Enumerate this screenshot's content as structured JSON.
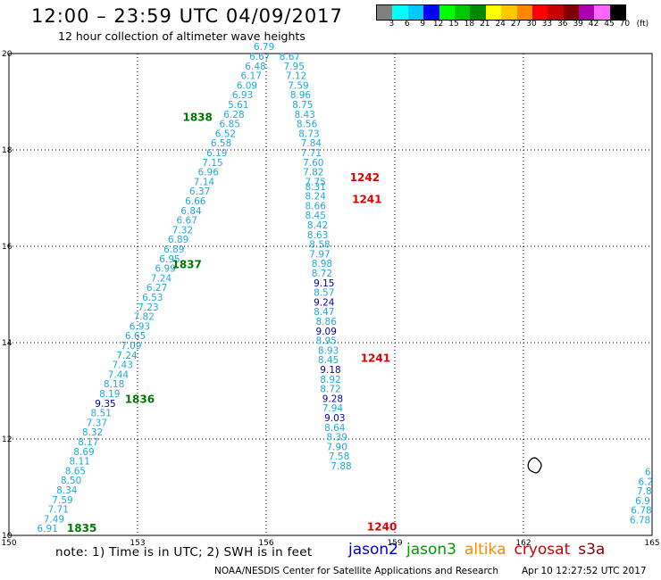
{
  "title": "12:00 – 23:59 UTC 04/09/2017",
  "subtitle": "12 hour collection of altimeter wave heights",
  "legend": {
    "labels": [
      "3",
      "6",
      "9",
      "12",
      "15",
      "18",
      "21",
      "24",
      "27",
      "30",
      "33",
      "36",
      "39",
      "42",
      "45",
      "70"
    ],
    "unit": "(ft)",
    "colors": [
      "#808080",
      "#00ffff",
      "#00c8ff",
      "#0000ff",
      "#00ff00",
      "#00c800",
      "#008800",
      "#ffff00",
      "#ffc800",
      "#ff8800",
      "#ff0000",
      "#c80000",
      "#800000",
      "#aa00aa",
      "#ff66ff",
      "#000000"
    ]
  },
  "map": {
    "x_ticks": [
      "150",
      "153",
      "156",
      "159",
      "162",
      "165"
    ],
    "y_ticks": [
      "10",
      "12",
      "14",
      "16",
      "18",
      "20"
    ],
    "x_range": [
      150,
      165
    ],
    "y_range": [
      10,
      20
    ]
  },
  "tracks": [
    {
      "name": "track_1",
      "values": [
        {
          "lon": 150.9,
          "lat": 10.07,
          "v": "6.91"
        },
        {
          "lon": 151.05,
          "lat": 10.27,
          "v": "7.49"
        },
        {
          "lon": 151.15,
          "lat": 10.47,
          "v": "7.71"
        },
        {
          "lon": 151.25,
          "lat": 10.67,
          "v": "7.59"
        },
        {
          "lon": 151.35,
          "lat": 10.87,
          "v": "8.34"
        },
        {
          "lon": 151.45,
          "lat": 11.07,
          "v": "8.50"
        },
        {
          "lon": 151.55,
          "lat": 11.27,
          "v": "8.65"
        },
        {
          "lon": 151.65,
          "lat": 11.47,
          "v": "8.11"
        },
        {
          "lon": 151.75,
          "lat": 11.67,
          "v": "8.69"
        },
        {
          "lon": 151.85,
          "lat": 11.87,
          "v": "8.17"
        },
        {
          "lon": 151.95,
          "lat": 12.07,
          "v": "8.32"
        },
        {
          "lon": 152.05,
          "lat": 12.27,
          "v": "7.37"
        },
        {
          "lon": 152.15,
          "lat": 12.47,
          "v": "8.51"
        },
        {
          "lon": 152.25,
          "lat": 12.67,
          "v": "9.35",
          "c": "blue"
        },
        {
          "lon": 152.35,
          "lat": 12.87,
          "v": "8.19"
        },
        {
          "lon": 152.45,
          "lat": 13.07,
          "v": "8.18"
        },
        {
          "lon": 152.55,
          "lat": 13.27,
          "v": "7.44"
        },
        {
          "lon": 152.65,
          "lat": 13.47,
          "v": "7.43"
        },
        {
          "lon": 152.75,
          "lat": 13.67,
          "v": "7.24"
        },
        {
          "lon": 152.85,
          "lat": 13.87,
          "v": "7.09"
        },
        {
          "lon": 152.95,
          "lat": 14.07,
          "v": "6.65"
        },
        {
          "lon": 153.05,
          "lat": 14.27,
          "v": "6.93"
        },
        {
          "lon": 153.15,
          "lat": 14.47,
          "v": "7.82"
        },
        {
          "lon": 153.25,
          "lat": 14.67,
          "v": "7.23"
        },
        {
          "lon": 153.35,
          "lat": 14.87,
          "v": "6.53"
        },
        {
          "lon": 153.45,
          "lat": 15.07,
          "v": "6.27"
        },
        {
          "lon": 153.55,
          "lat": 15.27,
          "v": "7.24"
        },
        {
          "lon": 153.65,
          "lat": 15.47,
          "v": "6.99"
        },
        {
          "lon": 153.75,
          "lat": 15.67,
          "v": "6.95"
        },
        {
          "lon": 153.85,
          "lat": 15.87,
          "v": "6.89"
        },
        {
          "lon": 153.95,
          "lat": 16.07,
          "v": "6.89"
        },
        {
          "lon": 154.05,
          "lat": 16.27,
          "v": "7.32"
        },
        {
          "lon": 154.15,
          "lat": 16.47,
          "v": "6.67"
        },
        {
          "lon": 154.25,
          "lat": 16.67,
          "v": "6.84"
        },
        {
          "lon": 154.35,
          "lat": 16.87,
          "v": "6.66"
        },
        {
          "lon": 154.45,
          "lat": 17.07,
          "v": "6.37"
        },
        {
          "lon": 154.55,
          "lat": 17.27,
          "v": "7.14"
        },
        {
          "lon": 154.65,
          "lat": 17.47,
          "v": "6.96"
        },
        {
          "lon": 154.75,
          "lat": 17.67,
          "v": "7.15"
        },
        {
          "lon": 154.85,
          "lat": 17.87,
          "v": "6.19"
        },
        {
          "lon": 154.95,
          "lat": 18.07,
          "v": "6.58"
        },
        {
          "lon": 155.05,
          "lat": 18.27,
          "v": "6.52"
        },
        {
          "lon": 155.15,
          "lat": 18.47,
          "v": "6.85"
        },
        {
          "lon": 155.25,
          "lat": 18.67,
          "v": "6.28"
        },
        {
          "lon": 155.35,
          "lat": 18.87,
          "v": "5.61"
        },
        {
          "lon": 155.45,
          "lat": 19.07,
          "v": "6.93"
        },
        {
          "lon": 155.55,
          "lat": 19.27,
          "v": "6.09"
        },
        {
          "lon": 155.65,
          "lat": 19.47,
          "v": "6.17"
        },
        {
          "lon": 155.75,
          "lat": 19.67,
          "v": "6.48"
        },
        {
          "lon": 155.85,
          "lat": 19.87,
          "v": "6.67"
        },
        {
          "lon": 155.95,
          "lat": 20.07,
          "v": "6.79"
        }
      ]
    },
    {
      "name": "track_2",
      "values": [
        {
          "lon": 156.55,
          "lat": 19.87,
          "v": "8.67"
        },
        {
          "lon": 156.65,
          "lat": 19.67,
          "v": "7.95"
        },
        {
          "lon": 156.7,
          "lat": 19.47,
          "v": "7.12"
        },
        {
          "lon": 156.75,
          "lat": 19.27,
          "v": "7.59"
        },
        {
          "lon": 156.8,
          "lat": 19.07,
          "v": "8.96"
        },
        {
          "lon": 156.85,
          "lat": 18.87,
          "v": "8.75"
        },
        {
          "lon": 156.9,
          "lat": 18.67,
          "v": "8.43"
        },
        {
          "lon": 156.95,
          "lat": 18.47,
          "v": "8.56"
        },
        {
          "lon": 157.0,
          "lat": 18.27,
          "v": "8.73"
        },
        {
          "lon": 157.05,
          "lat": 18.07,
          "v": "7.84"
        },
        {
          "lon": 157.05,
          "lat": 17.87,
          "v": "7.71"
        },
        {
          "lon": 157.1,
          "lat": 17.67,
          "v": "7.60"
        },
        {
          "lon": 157.1,
          "lat": 17.47,
          "v": "7.82"
        },
        {
          "lon": 157.15,
          "lat": 17.27,
          "v": "7.75"
        },
        {
          "lon": 157.15,
          "lat": 17.17,
          "v": "8.31"
        },
        {
          "lon": 157.15,
          "lat": 16.97,
          "v": "8.24"
        },
        {
          "lon": 157.15,
          "lat": 16.77,
          "v": "8.66"
        },
        {
          "lon": 157.15,
          "lat": 16.57,
          "v": "8.45"
        },
        {
          "lon": 157.2,
          "lat": 16.37,
          "v": "8.42"
        },
        {
          "lon": 157.2,
          "lat": 16.17,
          "v": "8.63"
        },
        {
          "lon": 157.25,
          "lat": 15.97,
          "v": "8.58"
        },
        {
          "lon": 157.25,
          "lat": 15.77,
          "v": "7.97"
        },
        {
          "lon": 157.3,
          "lat": 15.57,
          "v": "8.98"
        },
        {
          "lon": 157.3,
          "lat": 15.37,
          "v": "8.72"
        },
        {
          "lon": 157.35,
          "lat": 15.17,
          "v": "9.15",
          "c": "blue"
        },
        {
          "lon": 157.35,
          "lat": 14.97,
          "v": "8.57"
        },
        {
          "lon": 157.35,
          "lat": 14.77,
          "v": "9.24",
          "c": "blue"
        },
        {
          "lon": 157.35,
          "lat": 14.57,
          "v": "8.47"
        },
        {
          "lon": 157.4,
          "lat": 14.37,
          "v": "8.86"
        },
        {
          "lon": 157.4,
          "lat": 14.17,
          "v": "9.09",
          "c": "blue"
        },
        {
          "lon": 157.4,
          "lat": 13.97,
          "v": "8.95"
        },
        {
          "lon": 157.45,
          "lat": 13.77,
          "v": "8.93"
        },
        {
          "lon": 157.45,
          "lat": 13.57,
          "v": "8.45"
        },
        {
          "lon": 157.5,
          "lat": 13.37,
          "v": "9.18",
          "c": "blue"
        },
        {
          "lon": 157.5,
          "lat": 13.17,
          "v": "8.92"
        },
        {
          "lon": 157.5,
          "lat": 12.97,
          "v": "8.72"
        },
        {
          "lon": 157.55,
          "lat": 12.77,
          "v": "9.28",
          "c": "blue"
        },
        {
          "lon": 157.55,
          "lat": 12.57,
          "v": "7.94"
        },
        {
          "lon": 157.6,
          "lat": 12.37,
          "v": "9.03",
          "c": "blue"
        },
        {
          "lon": 157.6,
          "lat": 12.17,
          "v": "8.64"
        },
        {
          "lon": 157.65,
          "lat": 11.97,
          "v": "8.39"
        },
        {
          "lon": 157.65,
          "lat": 11.77,
          "v": "7.90"
        },
        {
          "lon": 157.7,
          "lat": 11.57,
          "v": "7.58"
        },
        {
          "lon": 157.75,
          "lat": 11.37,
          "v": "7.88"
        }
      ]
    },
    {
      "name": "track_3",
      "values": [
        {
          "lon": 164.9,
          "lat": 11.25,
          "v": "6"
        },
        {
          "lon": 164.85,
          "lat": 11.05,
          "v": "6.2"
        },
        {
          "lon": 164.82,
          "lat": 10.85,
          "v": "7.8"
        },
        {
          "lon": 164.78,
          "lat": 10.65,
          "v": "6.9"
        },
        {
          "lon": 164.75,
          "lat": 10.45,
          "v": "6.78"
        },
        {
          "lon": 164.72,
          "lat": 10.25,
          "v": "6.78"
        }
      ]
    }
  ],
  "times": [
    {
      "lon": 154.4,
      "lat": 18.6,
      "text": "1838",
      "sat": "jason3"
    },
    {
      "lon": 154.15,
      "lat": 15.55,
      "text": "1837",
      "sat": "jason3"
    },
    {
      "lon": 153.05,
      "lat": 12.75,
      "text": "1836",
      "sat": "jason3"
    },
    {
      "lon": 151.7,
      "lat": 10.07,
      "text": "1835",
      "sat": "jason3"
    },
    {
      "lon": 158.3,
      "lat": 17.35,
      "text": "1242",
      "sat": "cryosat"
    },
    {
      "lon": 158.35,
      "lat": 16.9,
      "text": "1241",
      "sat": "cryosat"
    },
    {
      "lon": 158.55,
      "lat": 13.6,
      "text": "1241",
      "sat": "cryosat"
    },
    {
      "lon": 158.7,
      "lat": 10.1,
      "text": "1240",
      "sat": "cryosat"
    }
  ],
  "note": "note: 1) Time is in UTC; 2) SWH is in feet",
  "satellites": [
    {
      "name": "jason2",
      "color": "#0000cc"
    },
    {
      "name": "jason3",
      "color": "#009900"
    },
    {
      "name": "altika",
      "color": "#ff8800"
    },
    {
      "name": "cryosat",
      "color": "#cc0000"
    },
    {
      "name": "s3a",
      "color": "#880000"
    }
  ],
  "credit": "NOAA/NESDIS Center for Satellite Applications and Research",
  "timestamp": "Apr 10 12:27:52 UTC 2017",
  "colors": {
    "value_default": "#21a9d9",
    "value_high": "#0000aa",
    "jason3": "#007700",
    "cryosat": "#dd0000"
  }
}
